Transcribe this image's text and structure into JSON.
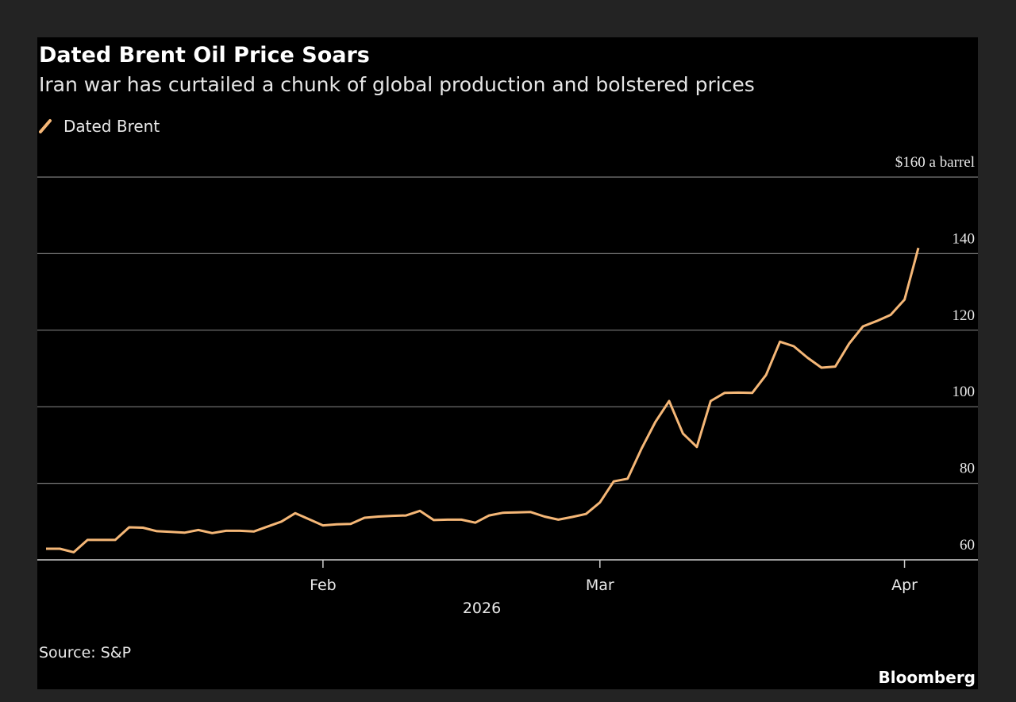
{
  "chart_data": {
    "type": "line",
    "title": "Dated Brent Oil Price Soars",
    "subtitle": "Iran war has curtailed a chunk of global production and bolstered prices",
    "xlabel": "2026",
    "source": "Source: S&P",
    "brand": "Bloomberg",
    "categories": [
      null,
      null,
      null,
      null,
      null,
      null,
      null,
      null,
      null,
      null,
      null,
      null,
      null,
      null,
      null,
      null,
      null,
      null,
      null,
      null,
      "Feb",
      null,
      null,
      null,
      null,
      null,
      null,
      null,
      null,
      null,
      null,
      null,
      null,
      null,
      null,
      null,
      null,
      null,
      null,
      null,
      "Mar",
      null,
      null,
      null,
      null,
      null,
      null,
      null,
      null,
      null,
      null,
      null,
      null,
      null,
      null,
      null,
      null,
      null,
      null,
      null,
      null,
      null,
      "Apr",
      null
    ],
    "series": [
      {
        "name": "Dated Brent",
        "color": "#f5b777",
        "values": [
          62.9,
          62.9,
          62.0,
          65.2,
          65.2,
          65.2,
          68.5,
          68.4,
          67.5,
          67.3,
          67.1,
          67.8,
          67.0,
          67.6,
          67.6,
          67.4,
          68.7,
          70.0,
          72.2,
          70.6,
          69.0,
          69.3,
          69.4,
          71.0,
          71.3,
          71.5,
          71.6,
          72.8,
          70.4,
          70.5,
          70.5,
          69.7,
          71.6,
          72.3,
          72.4,
          72.5,
          71.3,
          70.5,
          71.2,
          72.0,
          75.0,
          80.5,
          81.2,
          89.0,
          96.0,
          101.5,
          93.0,
          89.5,
          101.5,
          103.6,
          103.7,
          103.6,
          108.3,
          117.0,
          115.8,
          112.8,
          110.2,
          110.5,
          116.5,
          121.0,
          122.4,
          124.0,
          128.0,
          141.5
        ]
      }
    ],
    "ylim": [
      60,
      160
    ],
    "yticks": [
      60,
      80,
      100,
      120,
      140,
      {
        "value": 160,
        "label": "$160 a barrel"
      }
    ],
    "grid": true
  }
}
